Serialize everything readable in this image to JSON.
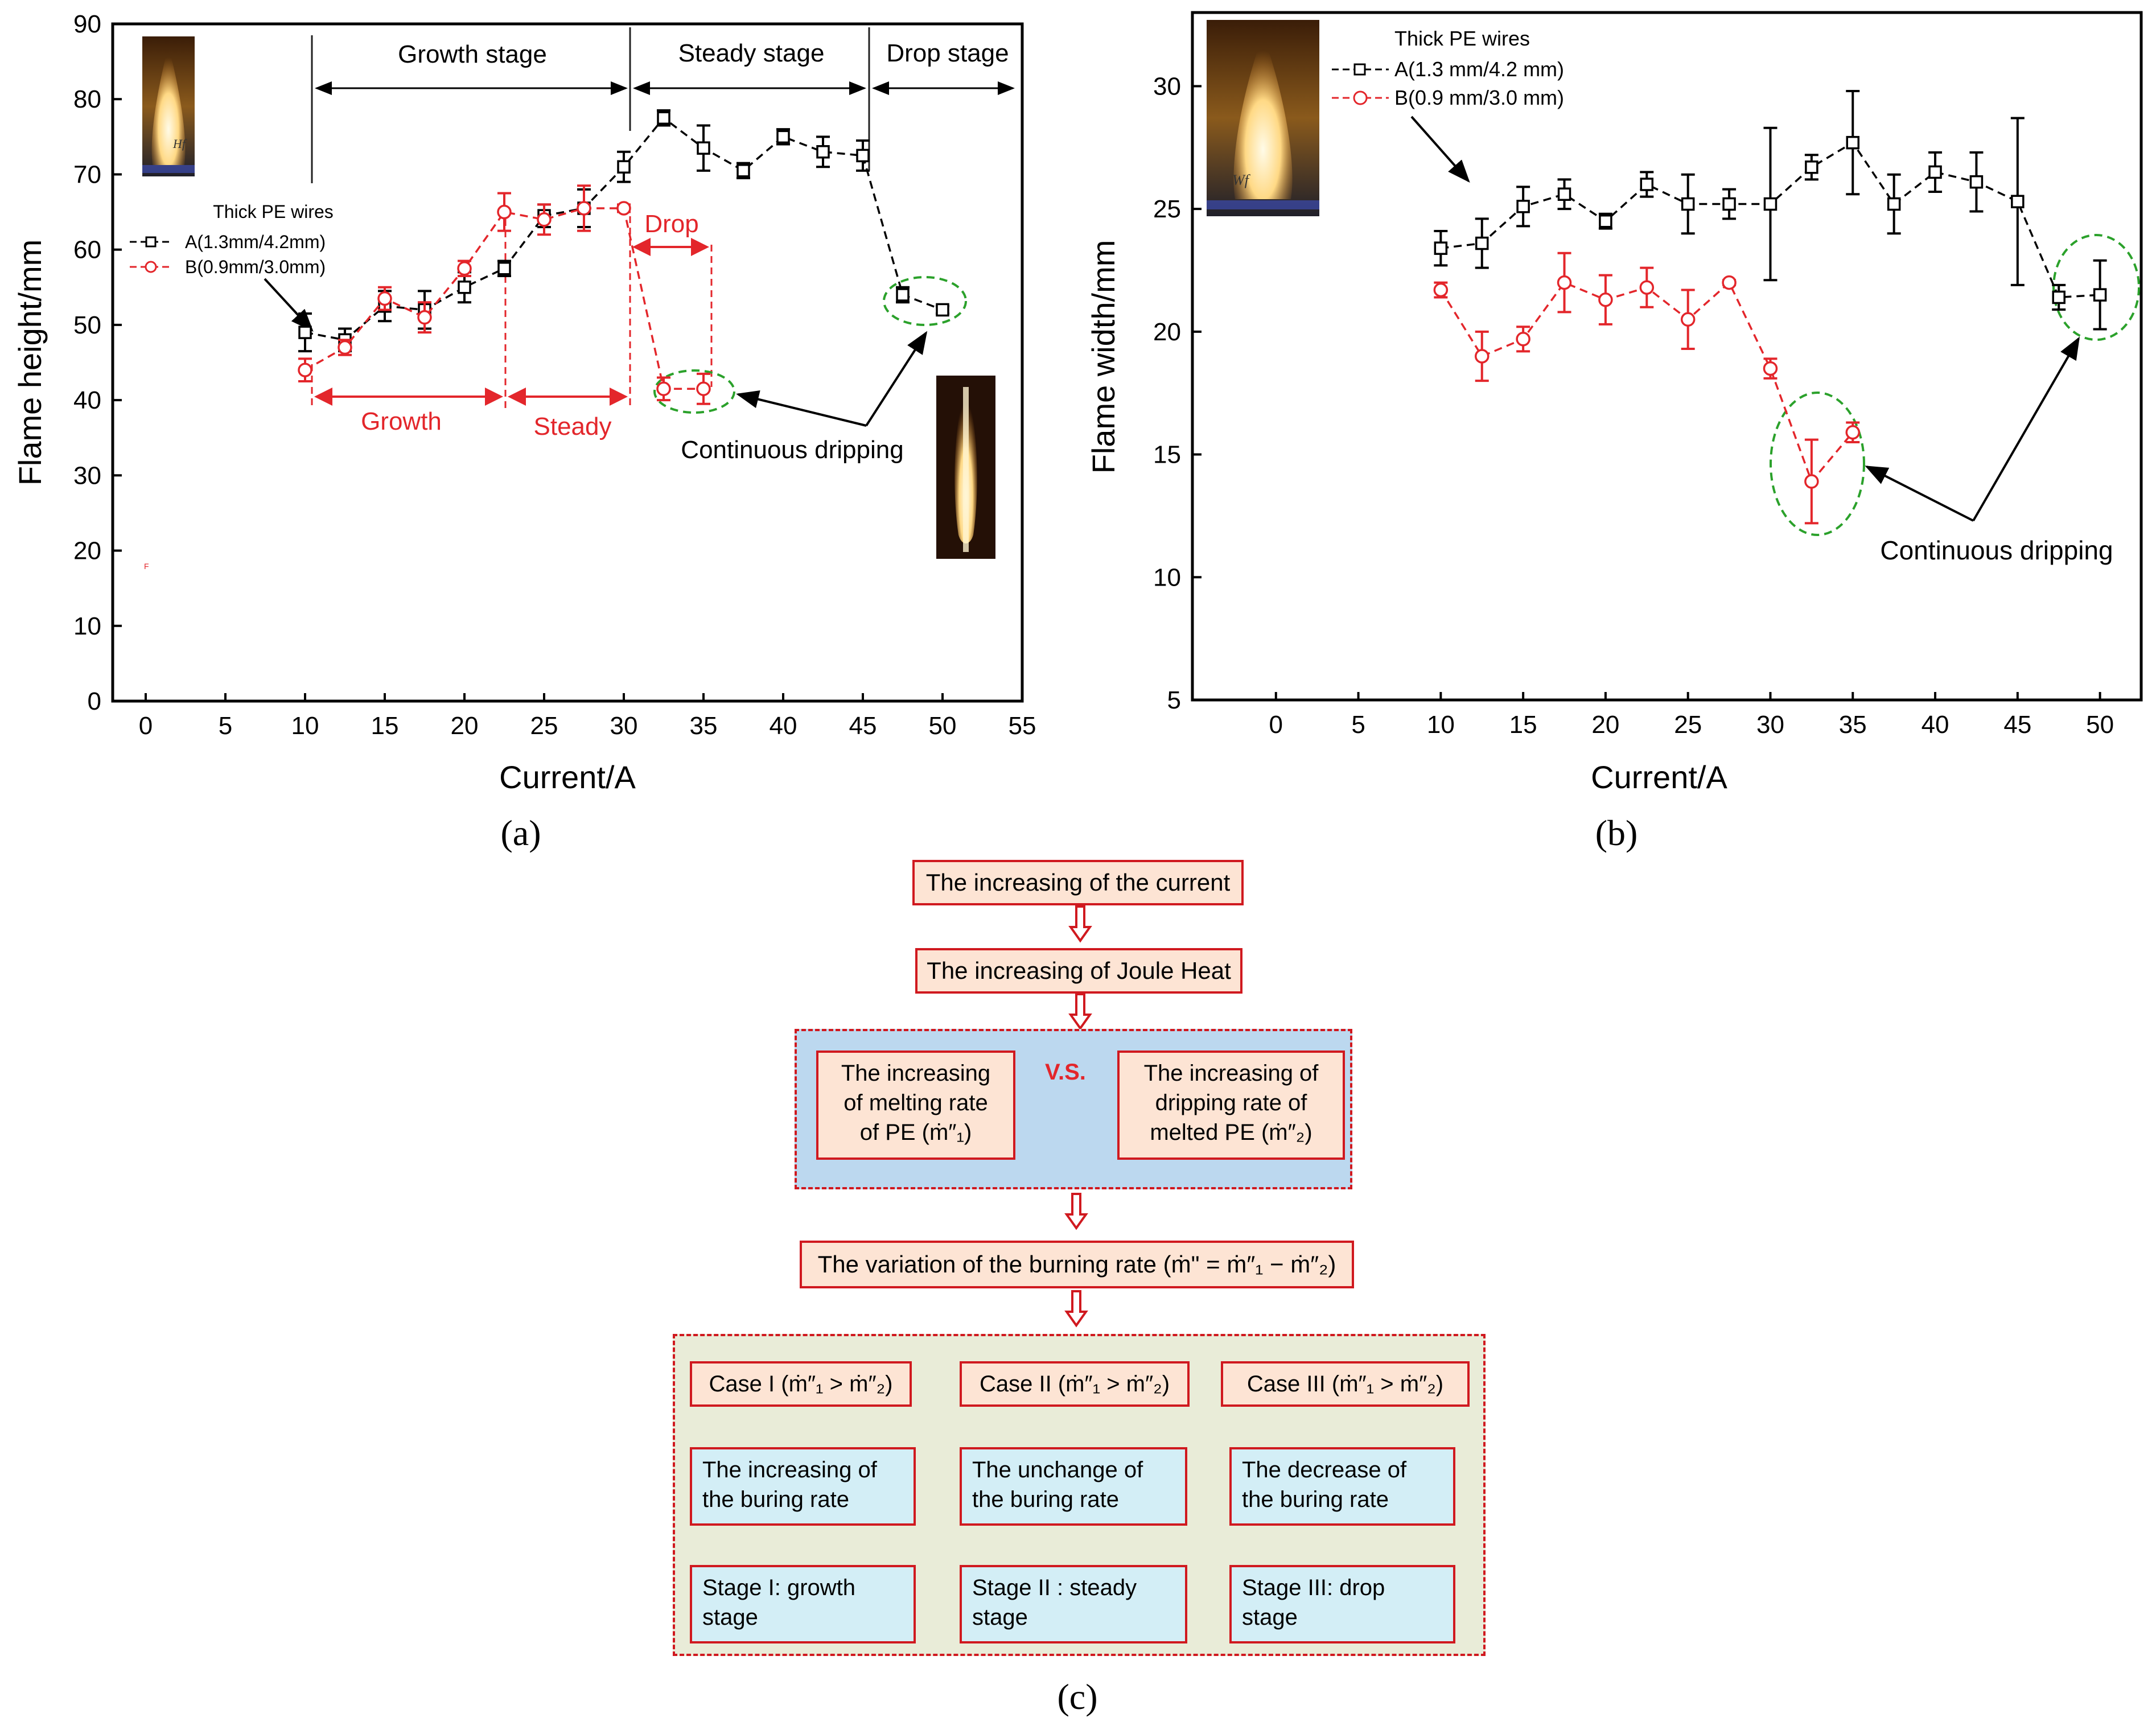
{
  "chart_data": [
    {
      "type": "scatter",
      "panel_label": "(a)",
      "xlabel": "Current/A",
      "ylabel": "Flame height/mm",
      "xlim": [
        -2,
        55
      ],
      "ylim": [
        0,
        90
      ],
      "xticks": [
        0,
        5,
        10,
        15,
        20,
        25,
        30,
        35,
        40,
        45,
        50,
        55
      ],
      "yticks": [
        0,
        10,
        20,
        30,
        40,
        50,
        60,
        70,
        80,
        90
      ],
      "legend": {
        "title": "Thick PE wires",
        "position": "left"
      },
      "series": [
        {
          "name": "A(1.3mm/4.2mm)",
          "color": "#000000",
          "marker": "square",
          "x": [
            10,
            12.5,
            15,
            17.5,
            20,
            22.5,
            25,
            27.5,
            30,
            32.5,
            35,
            37.5,
            40,
            42.5,
            45,
            47.5,
            50
          ],
          "y": [
            49,
            48,
            52.5,
            52,
            55,
            57.5,
            64.5,
            65.5,
            71,
            77.5,
            73.5,
            70.5,
            75,
            73,
            72.5,
            54,
            52
          ],
          "err": [
            2.5,
            1.5,
            2,
            2.5,
            2,
            1,
            1.5,
            2.5,
            2,
            1,
            3,
            1,
            1,
            2,
            2,
            1,
            0.5
          ]
        },
        {
          "name": "B(0.9mm/3.0mm)",
          "color": "#e3262b",
          "marker": "circle",
          "x": [
            10,
            12.5,
            15,
            17.5,
            20,
            22.5,
            25,
            27.5,
            30,
            32.5,
            35
          ],
          "y": [
            44,
            47,
            53.5,
            51,
            57.5,
            65,
            64,
            65.5,
            65.5,
            41.5,
            41.5
          ],
          "err": [
            1.5,
            1,
            1.5,
            2,
            1,
            2.5,
            2,
            3,
            0.5,
            1.5,
            2
          ]
        }
      ],
      "annotations": {
        "growth_stage": "Growth stage",
        "steady_stage": "Steady stage",
        "drop_stage": "Drop stage",
        "red_growth": "Growth",
        "red_steady": "Steady",
        "red_drop": "Drop",
        "continuous_dripping": "Continuous dripping",
        "inset_symbol": "Hf",
        "stray_tick": "F"
      }
    },
    {
      "type": "scatter",
      "panel_label": "(b)",
      "xlabel": "Current/A",
      "ylabel": "Flame width/mm",
      "xlim": [
        -5,
        52.5
      ],
      "ylim": [
        5,
        33
      ],
      "xticks": [
        0,
        5,
        10,
        15,
        20,
        25,
        30,
        35,
        40,
        45,
        50
      ],
      "yticks": [
        5,
        10,
        15,
        20,
        25,
        30
      ],
      "legend": {
        "title": "Thick PE wires",
        "position": "top-left"
      },
      "series": [
        {
          "name": "A(1.3 mm/4.2 mm)",
          "color": "#000000",
          "marker": "square",
          "x": [
            10,
            12.5,
            15,
            17.5,
            20,
            22.5,
            25,
            27.5,
            30,
            32.5,
            35,
            37.5,
            40,
            42.5,
            45,
            47.5,
            50
          ],
          "y": [
            23.4,
            23.6,
            25.1,
            25.6,
            24.5,
            26,
            25.2,
            25.2,
            25.2,
            26.7,
            27.7,
            25.2,
            26.5,
            26.1,
            25.3,
            21.4,
            21.5
          ],
          "err": [
            0.7,
            1,
            0.8,
            0.6,
            0.3,
            0.5,
            1.2,
            0.6,
            3.1,
            0.5,
            2.1,
            1.2,
            0.8,
            1.2,
            3.4,
            0.5,
            1.4
          ]
        },
        {
          "name": "B(0.9 mm/3.0 mm)",
          "color": "#e3262b",
          "marker": "circle",
          "x": [
            10,
            12.5,
            15,
            17.5,
            20,
            22.5,
            25,
            27.5,
            30,
            32.5,
            35
          ],
          "y": [
            21.7,
            19,
            19.7,
            22,
            21.3,
            21.8,
            20.5,
            22,
            18.5,
            13.9,
            15.9
          ],
          "err": [
            0.3,
            1,
            0.5,
            1.2,
            1,
            0.8,
            1.2,
            0.1,
            0.4,
            1.7,
            0.4
          ]
        }
      ],
      "annotations": {
        "continuous_dripping": "Continuous dripping",
        "inset_symbol": "Wf"
      }
    }
  ],
  "flow": {
    "panel_label": "(c)",
    "current": "The increasing of the current",
    "joule": "The increasing of Joule Heat",
    "melting": [
      "The increasing",
      "of melting rate",
      "of PE (ṁ″₁)"
    ],
    "vs": "V.S.",
    "dripping": [
      "The increasing of",
      "dripping rate of",
      "melted PE (ṁ″₂)"
    ],
    "burning": "The variation of the burning rate (ṁ\" = ṁ″₁ − ṁ″₂)",
    "cases": [
      {
        "head": "Case I (ṁ″₁ > ṁ″₂)",
        "rate": [
          "The increasing of",
          "the buring rate"
        ],
        "stage": [
          "Stage I: growth",
          "stage"
        ]
      },
      {
        "head": "Case II (ṁ″₁ > ṁ″₂)",
        "rate": [
          "The unchange of",
          "the buring rate"
        ],
        "stage": [
          "Stage II : steady",
          "stage"
        ]
      },
      {
        "head": "Case III (ṁ″₁ > ṁ″₂)",
        "rate": [
          "The decrease of",
          "the buring rate"
        ],
        "stage": [
          "Stage III: drop",
          "stage"
        ]
      }
    ]
  },
  "colors": {
    "black_series": "#000000",
    "red_series": "#e3262b",
    "green_ellipse": "#2ba12b",
    "box_fill": "#fde4d4",
    "box_border": "#d0191f",
    "blue_panel": "#bcd8ef",
    "case_fill": "#d3eef6",
    "green_panel": "#e9ecd8"
  }
}
